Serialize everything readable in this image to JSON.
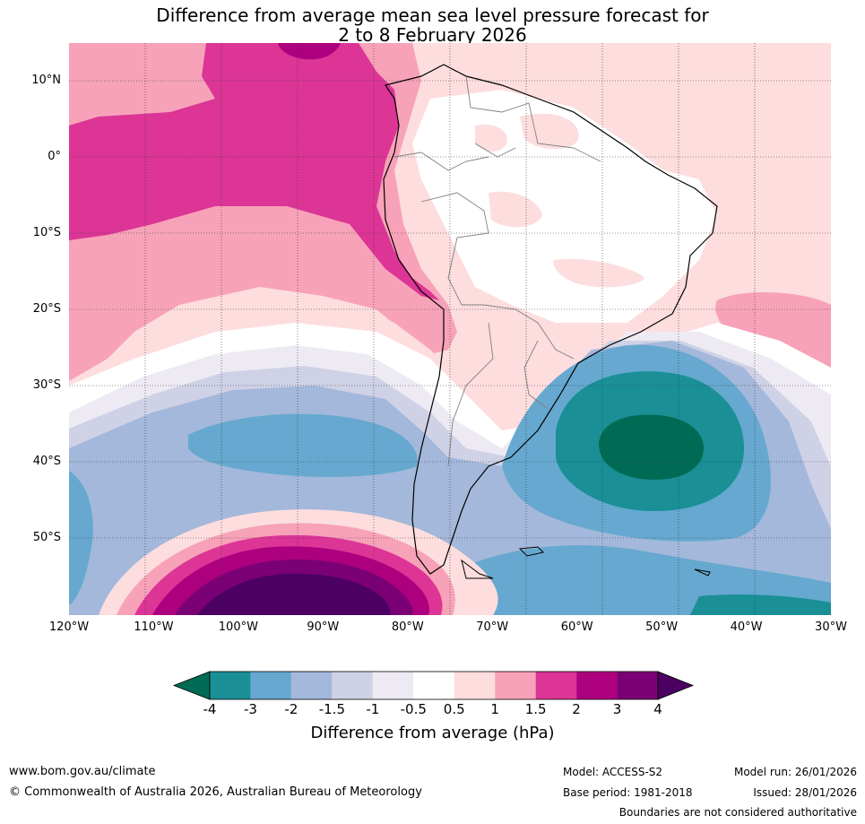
{
  "title": {
    "line1": "Difference from average mean sea level pressure forecast for",
    "line2": "2 to 8 February 2026"
  },
  "map": {
    "lat_labels": [
      "10°N",
      "0°",
      "10°S",
      "20°S",
      "30°S",
      "40°S",
      "50°S"
    ],
    "lon_labels": [
      "120°W",
      "110°W",
      "100°W",
      "90°W",
      "80°W",
      "70°W",
      "60°W",
      "50°W",
      "40°W",
      "30°W"
    ],
    "lat_values": [
      10,
      0,
      -10,
      -20,
      -30,
      -40,
      -50
    ],
    "lon_values": [
      -120,
      -110,
      -100,
      -90,
      -80,
      -70,
      -60,
      -50,
      -40,
      -30
    ],
    "extent": {
      "lon_min": -120,
      "lon_max": -30,
      "lat_min": -60,
      "lat_max": 15
    }
  },
  "colorbar": {
    "ticks": [
      "-4",
      "-3",
      "-2",
      "-1.5",
      "-1",
      "-0.5",
      "0.5",
      "1",
      "1.5",
      "2",
      "3",
      "4"
    ],
    "colors": [
      "#1a8f96",
      "#66a8cf",
      "#a3b8da",
      "#cfd1e6",
      "#eeeaf3",
      "#ffffff",
      "#fdddde",
      "#f7a2b9",
      "#dc3596",
      "#ad007e",
      "#7b0075"
    ],
    "below_color": "#006b54",
    "above_color": "#4b0062",
    "label": "Difference from average (hPa)"
  },
  "footer": {
    "website": "www.bom.gov.au/climate",
    "copyright": "© Commonwealth of Australia 2026, Australian Bureau of Meteorology",
    "model": "Model: ACCESS-S2",
    "base_period": "Base period: 1981-2018",
    "model_run": "Model run: 26/01/2026",
    "issued": "Issued: 28/01/2026",
    "disclaimer": "Boundaries are not considered authoritative"
  }
}
